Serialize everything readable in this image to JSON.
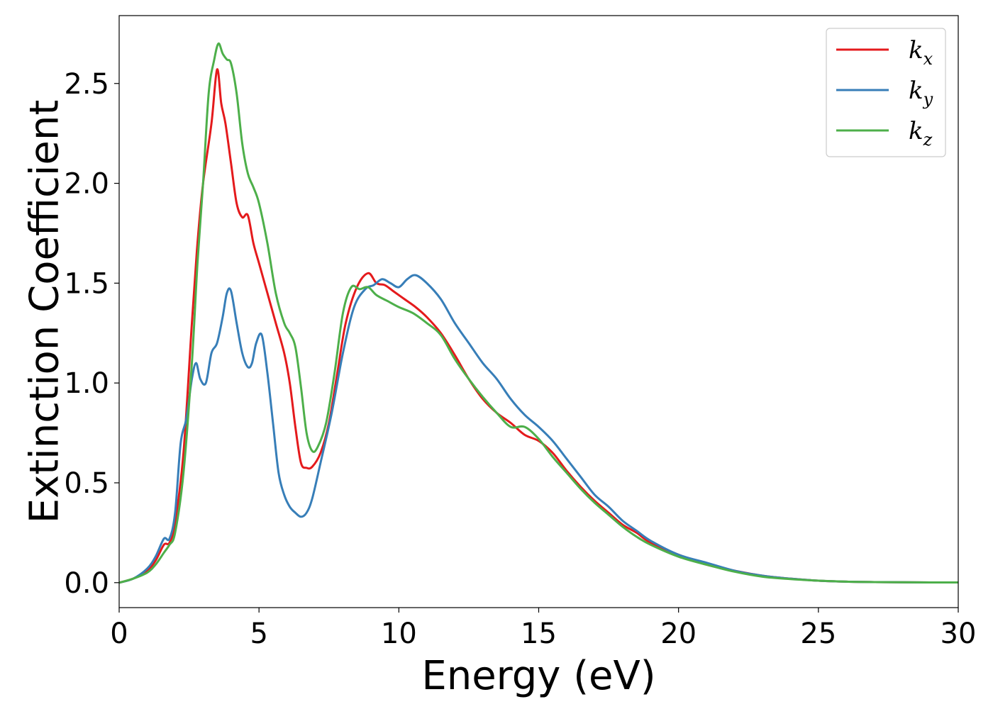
{
  "chart_data": {
    "type": "line",
    "xlabel": "Energy (eV)",
    "ylabel": "Extinction Coefficient",
    "xlim": [
      0,
      30
    ],
    "ylim": [
      -0.125,
      2.84
    ],
    "xticks": [
      0,
      5,
      10,
      15,
      20,
      25,
      30
    ],
    "xtick_labels": [
      "0",
      "5",
      "10",
      "15",
      "20",
      "25",
      "30"
    ],
    "yticks": [
      0.0,
      0.5,
      1.0,
      1.5,
      2.0,
      2.5
    ],
    "ytick_labels": [
      "0.0",
      "0.5",
      "1.0",
      "1.5",
      "2.0",
      "2.5"
    ],
    "grid": false,
    "legend_position": "top-right",
    "series": [
      {
        "name": "k_x",
        "label_base": "k",
        "label_sub": "x",
        "color": "#e41a1c",
        "x": [
          0,
          0.5,
          1.0,
          1.3,
          1.6,
          1.8,
          2.0,
          2.3,
          2.6,
          2.8,
          3.0,
          3.3,
          3.5,
          3.65,
          3.8,
          4.0,
          4.2,
          4.4,
          4.6,
          4.8,
          5.0,
          5.3,
          5.6,
          5.9,
          6.1,
          6.3,
          6.5,
          6.7,
          6.9,
          7.2,
          7.5,
          7.8,
          8.1,
          8.5,
          8.9,
          9.2,
          9.5,
          9.8,
          10.2,
          10.6,
          11.0,
          11.5,
          12.0,
          12.5,
          13.0,
          13.5,
          14.0,
          14.5,
          15.0,
          15.5,
          16.0,
          16.5,
          17.0,
          17.5,
          18.0,
          18.5,
          19.0,
          20.0,
          21.0,
          22.0,
          23.0,
          24.0,
          25.0,
          26.0,
          27.0,
          28.0,
          29.0,
          30.0
        ],
        "values": [
          0,
          0.02,
          0.06,
          0.11,
          0.19,
          0.2,
          0.3,
          0.65,
          1.3,
          1.7,
          2.0,
          2.3,
          2.57,
          2.4,
          2.3,
          2.1,
          1.9,
          1.83,
          1.84,
          1.7,
          1.6,
          1.45,
          1.3,
          1.15,
          1.0,
          0.78,
          0.6,
          0.575,
          0.58,
          0.65,
          0.8,
          1.05,
          1.3,
          1.48,
          1.55,
          1.5,
          1.49,
          1.46,
          1.42,
          1.38,
          1.33,
          1.25,
          1.14,
          1.02,
          0.92,
          0.85,
          0.8,
          0.74,
          0.71,
          0.65,
          0.56,
          0.48,
          0.41,
          0.35,
          0.29,
          0.25,
          0.2,
          0.14,
          0.09,
          0.06,
          0.035,
          0.02,
          0.01,
          0.005,
          0.003,
          0.002,
          0.001,
          0.001
        ]
      },
      {
        "name": "k_y",
        "label_base": "k",
        "label_sub": "y",
        "color": "#377eb8",
        "x": [
          0,
          0.5,
          1.0,
          1.3,
          1.6,
          1.8,
          2.0,
          2.2,
          2.4,
          2.6,
          2.75,
          2.9,
          3.1,
          3.3,
          3.5,
          3.7,
          3.85,
          4.0,
          4.2,
          4.4,
          4.6,
          4.75,
          4.9,
          5.1,
          5.3,
          5.5,
          5.7,
          5.9,
          6.1,
          6.3,
          6.5,
          6.7,
          6.9,
          7.2,
          7.6,
          8.0,
          8.4,
          8.8,
          9.1,
          9.4,
          9.7,
          10.0,
          10.3,
          10.6,
          11.0,
          11.5,
          12.0,
          12.5,
          13.0,
          13.5,
          14.0,
          14.5,
          15.0,
          15.5,
          16.0,
          16.5,
          17.0,
          17.5,
          18.0,
          18.5,
          19.0,
          20.0,
          21.0,
          22.0,
          23.0,
          24.0,
          25.0,
          26.0,
          27.0,
          28.0,
          29.0,
          30.0
        ],
        "values": [
          0,
          0.02,
          0.07,
          0.13,
          0.22,
          0.22,
          0.35,
          0.7,
          0.82,
          1.02,
          1.1,
          1.02,
          1.0,
          1.15,
          1.2,
          1.33,
          1.45,
          1.46,
          1.3,
          1.15,
          1.08,
          1.1,
          1.2,
          1.24,
          1.05,
          0.8,
          0.55,
          0.44,
          0.38,
          0.35,
          0.33,
          0.35,
          0.42,
          0.6,
          0.85,
          1.15,
          1.38,
          1.47,
          1.49,
          1.52,
          1.5,
          1.48,
          1.52,
          1.54,
          1.5,
          1.42,
          1.3,
          1.2,
          1.1,
          1.02,
          0.92,
          0.84,
          0.78,
          0.71,
          0.62,
          0.53,
          0.44,
          0.38,
          0.31,
          0.26,
          0.21,
          0.14,
          0.1,
          0.06,
          0.035,
          0.02,
          0.01,
          0.005,
          0.003,
          0.002,
          0.001,
          0.001
        ]
      },
      {
        "name": "k_z",
        "label_base": "k",
        "label_sub": "z",
        "color": "#4daf4a",
        "x": [
          0,
          0.5,
          1.0,
          1.3,
          1.6,
          1.8,
          2.0,
          2.3,
          2.6,
          2.8,
          3.0,
          3.2,
          3.4,
          3.55,
          3.7,
          3.85,
          4.0,
          4.2,
          4.4,
          4.6,
          4.8,
          5.0,
          5.3,
          5.6,
          5.9,
          6.1,
          6.3,
          6.5,
          6.7,
          6.9,
          7.1,
          7.4,
          7.7,
          8.0,
          8.3,
          8.6,
          8.9,
          9.2,
          9.6,
          10.0,
          10.5,
          11.0,
          11.5,
          12.0,
          12.5,
          13.0,
          13.5,
          14.0,
          14.5,
          15.0,
          15.5,
          16.0,
          16.5,
          17.0,
          17.5,
          18.0,
          18.5,
          19.0,
          20.0,
          21.0,
          22.0,
          23.0,
          24.0,
          25.0,
          26.0,
          27.0,
          28.0,
          29.0,
          30.0
        ],
        "values": [
          0,
          0.02,
          0.05,
          0.09,
          0.15,
          0.19,
          0.25,
          0.55,
          1.1,
          1.6,
          2.0,
          2.45,
          2.62,
          2.7,
          2.65,
          2.62,
          2.6,
          2.45,
          2.2,
          2.05,
          1.98,
          1.9,
          1.7,
          1.45,
          1.3,
          1.25,
          1.18,
          0.98,
          0.75,
          0.66,
          0.68,
          0.8,
          1.05,
          1.35,
          1.48,
          1.47,
          1.48,
          1.44,
          1.41,
          1.38,
          1.35,
          1.3,
          1.24,
          1.12,
          1.02,
          0.93,
          0.85,
          0.78,
          0.78,
          0.72,
          0.63,
          0.55,
          0.47,
          0.4,
          0.34,
          0.28,
          0.23,
          0.19,
          0.13,
          0.09,
          0.055,
          0.03,
          0.018,
          0.01,
          0.005,
          0.003,
          0.002,
          0.001,
          0.001
        ]
      }
    ]
  }
}
